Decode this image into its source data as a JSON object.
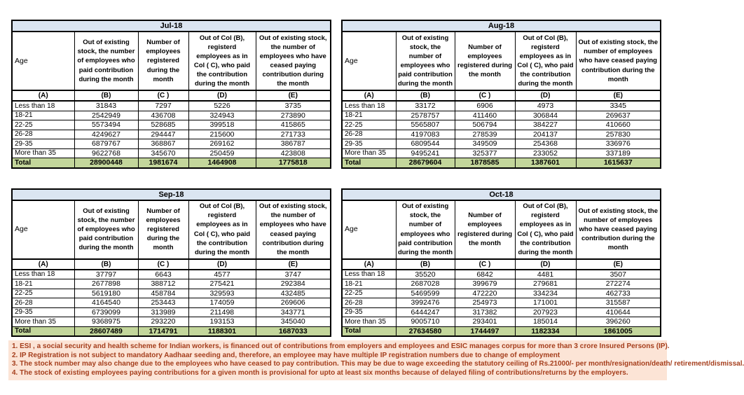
{
  "columns": {
    "age_label": "Age",
    "letters": [
      "(A)",
      "(B)",
      "(C )",
      "(D)",
      "(E)"
    ],
    "header_b": "Out of existing stock, the number of employees who paid contribution during the month",
    "header_c": "Number of employees registered during the month",
    "header_d": "Out of Col (B), registerd employees as in Col ( C), who paid the contribution during the month",
    "header_e": "Out of existing stock, the number of employees who have ceased paying contribution during the month"
  },
  "age_groups": [
    "Less than 18",
    "18-21",
    "22-25",
    "26-28",
    "29-35",
    "More than 35"
  ],
  "total_label": "Total",
  "tables": [
    {
      "month": "Jul-18",
      "rows": [
        [
          "31843",
          "7297",
          "5226",
          "3735"
        ],
        [
          "2542949",
          "436708",
          "324943",
          "273890"
        ],
        [
          "5573494",
          "528685",
          "399518",
          "415865"
        ],
        [
          "4249627",
          "294447",
          "215600",
          "271733"
        ],
        [
          "6879767",
          "368867",
          "269162",
          "386787"
        ],
        [
          "9622768",
          "345670",
          "250459",
          "423808"
        ]
      ],
      "totals": [
        "28900448",
        "1981674",
        "1464908",
        "1775818"
      ]
    },
    {
      "month": "Aug-18",
      "rows": [
        [
          "33172",
          "6906",
          "4973",
          "3345"
        ],
        [
          "2578757",
          "411460",
          "306844",
          "269637"
        ],
        [
          "5565807",
          "506794",
          "384227",
          "410660"
        ],
        [
          "4197083",
          "278539",
          "204137",
          "257830"
        ],
        [
          "6809544",
          "349509",
          "254368",
          "336976"
        ],
        [
          "9495241",
          "325377",
          "233052",
          "337189"
        ]
      ],
      "totals": [
        "28679604",
        "1878585",
        "1387601",
        "1615637"
      ]
    },
    {
      "month": "Sep-18",
      "rows": [
        [
          "37797",
          "6643",
          "4577",
          "3747"
        ],
        [
          "2677898",
          "388712",
          "275421",
          "292384"
        ],
        [
          "5619180",
          "458784",
          "329593",
          "432485"
        ],
        [
          "4164540",
          "253443",
          "174059",
          "269606"
        ],
        [
          "6739099",
          "313989",
          "211498",
          "343771"
        ],
        [
          "9368975",
          "293220",
          "193153",
          "345040"
        ]
      ],
      "totals": [
        "28607489",
        "1714791",
        "1188301",
        "1687033"
      ]
    },
    {
      "month": "Oct-18",
      "rows": [
        [
          "35520",
          "6842",
          "4481",
          "3507"
        ],
        [
          "2687028",
          "399679",
          "279681",
          "272274"
        ],
        [
          "5469599",
          "472220",
          "334234",
          "462733"
        ],
        [
          "3992476",
          "254973",
          "171001",
          "315587"
        ],
        [
          "6444247",
          "317382",
          "207923",
          "410644"
        ],
        [
          "9005710",
          "293401",
          "185014",
          "396260"
        ]
      ],
      "totals": [
        "27634580",
        "1744497",
        "1182334",
        "1861005"
      ]
    }
  ],
  "footnotes": [
    "1. ESI , a social security and health scheme for Indian workers, is financed out of contributions from employers and employees and ESIC manages corpus for more than 3 crore Insured Persons (IP).",
    "2. IP Registration is not subject to mandatory Aadhaar seeding and, therefore, an employee may have multiple IP registration numbers due to change of employment",
    "3. The stock number may also change due to the employees who have ceased to pay contribution. This may be due to wage exceeding the statutory ceiling of Rs.21000/- per month/resignation/death/ retirement/dismissal.",
    "4. The stock of existing employees paying contributions for a given month is provisional for upto at least six months because of delayed filing of contributions/returns by the employers."
  ],
  "colors": {
    "month_header_bg": "#dbe5f1",
    "total_row_bg": "#c3d69b",
    "footnote_bg": "#fce4d6",
    "footnote_text": "#a53e1c",
    "border": "#000000"
  }
}
